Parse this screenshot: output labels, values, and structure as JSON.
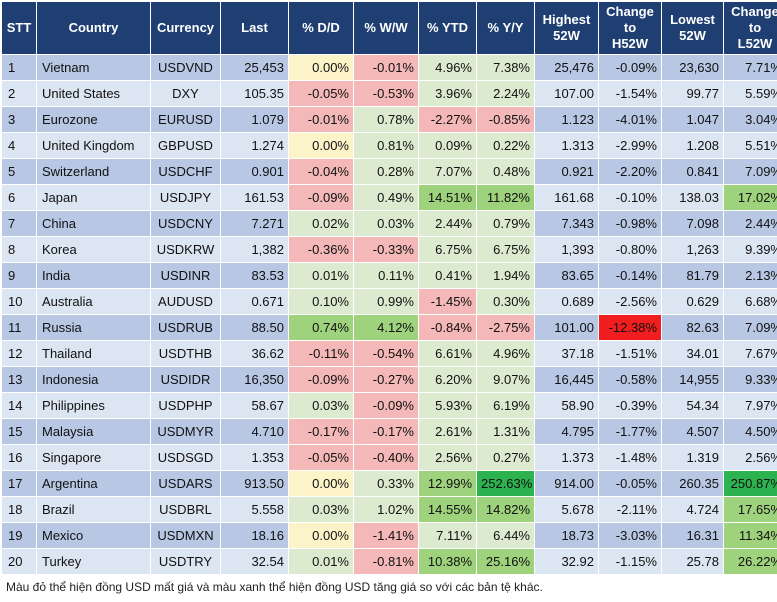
{
  "colors": {
    "header_bg": "#1f3f73",
    "row_odd": "#b8c7e3",
    "row_even": "#dce5f2",
    "neg_light": "#f4b8b8",
    "neg_strong": "#f01e1e",
    "pos_light": "#dcebd0",
    "pos_mid": "#9fd27c",
    "pos_strong": "#2cb34f",
    "neutral_yellow": "#fdf3c8"
  },
  "table": {
    "headers": [
      "STT",
      "Country",
      "Currency",
      "Last",
      "% D/D",
      "% W/W",
      "% YTD",
      "% Y/Y",
      "Highest\n52W",
      "Change\nto\nH52W",
      "Lowest\n52W",
      "Change\nto\nL52W"
    ],
    "rows": [
      {
        "stt": "1",
        "country": "Vietnam",
        "currency": "USDVND",
        "last": "25,453",
        "dd": "0.00%",
        "ww": "-0.01%",
        "ytd": "4.96%",
        "yy": "7.38%",
        "high": "25,476",
        "ch": "-0.09%",
        "low": "23,630",
        "cl": "7.71%"
      },
      {
        "stt": "2",
        "country": "United States",
        "currency": "DXY",
        "last": "105.35",
        "dd": "-0.05%",
        "ww": "-0.53%",
        "ytd": "3.96%",
        "yy": "2.24%",
        "high": "107.00",
        "ch": "-1.54%",
        "low": "99.77",
        "cl": "5.59%"
      },
      {
        "stt": "3",
        "country": "Eurozone",
        "currency": "EURUSD",
        "last": "1.079",
        "dd": "-0.01%",
        "ww": "0.78%",
        "ytd": "-2.27%",
        "yy": "-0.85%",
        "high": "1.123",
        "ch": "-4.01%",
        "low": "1.047",
        "cl": "3.04%"
      },
      {
        "stt": "4",
        "country": "United Kingdom",
        "currency": "GBPUSD",
        "last": "1.274",
        "dd": "0.00%",
        "ww": "0.81%",
        "ytd": "0.09%",
        "yy": "0.22%",
        "high": "1.313",
        "ch": "-2.99%",
        "low": "1.208",
        "cl": "5.51%"
      },
      {
        "stt": "5",
        "country": "Switzerland",
        "currency": "USDCHF",
        "last": "0.901",
        "dd": "-0.04%",
        "ww": "0.28%",
        "ytd": "7.07%",
        "yy": "0.48%",
        "high": "0.921",
        "ch": "-2.20%",
        "low": "0.841",
        "cl": "7.09%"
      },
      {
        "stt": "6",
        "country": "Japan",
        "currency": "USDJPY",
        "last": "161.53",
        "dd": "-0.09%",
        "ww": "0.49%",
        "ytd": "14.51%",
        "yy": "11.82%",
        "high": "161.68",
        "ch": "-0.10%",
        "low": "138.03",
        "cl": "17.02%"
      },
      {
        "stt": "7",
        "country": "China",
        "currency": "USDCNY",
        "last": "7.271",
        "dd": "0.02%",
        "ww": "0.03%",
        "ytd": "2.44%",
        "yy": "0.79%",
        "high": "7.343",
        "ch": "-0.98%",
        "low": "7.098",
        "cl": "2.44%"
      },
      {
        "stt": "8",
        "country": "Korea",
        "currency": "USDKRW",
        "last": "1,382",
        "dd": "-0.36%",
        "ww": "-0.33%",
        "ytd": "6.75%",
        "yy": "6.75%",
        "high": "1,393",
        "ch": "-0.80%",
        "low": "1,263",
        "cl": "9.39%"
      },
      {
        "stt": "9",
        "country": "India",
        "currency": "USDINR",
        "last": "83.53",
        "dd": "0.01%",
        "ww": "0.11%",
        "ytd": "0.41%",
        "yy": "1.94%",
        "high": "83.65",
        "ch": "-0.14%",
        "low": "81.79",
        "cl": "2.13%"
      },
      {
        "stt": "10",
        "country": "Australia",
        "currency": "AUDUSD",
        "last": "0.671",
        "dd": "0.10%",
        "ww": "0.99%",
        "ytd": "-1.45%",
        "yy": "0.30%",
        "high": "0.689",
        "ch": "-2.56%",
        "low": "0.629",
        "cl": "6.68%"
      },
      {
        "stt": "11",
        "country": "Russia",
        "currency": "USDRUB",
        "last": "88.50",
        "dd": "0.74%",
        "ww": "4.12%",
        "ytd": "-0.84%",
        "yy": "-2.75%",
        "high": "101.00",
        "ch": "-12.38%",
        "low": "82.63",
        "cl": "7.09%"
      },
      {
        "stt": "12",
        "country": "Thailand",
        "currency": "USDTHB",
        "last": "36.62",
        "dd": "-0.11%",
        "ww": "-0.54%",
        "ytd": "6.61%",
        "yy": "4.96%",
        "high": "37.18",
        "ch": "-1.51%",
        "low": "34.01",
        "cl": "7.67%"
      },
      {
        "stt": "13",
        "country": "Indonesia",
        "currency": "USDIDR",
        "last": "16,350",
        "dd": "-0.09%",
        "ww": "-0.27%",
        "ytd": "6.20%",
        "yy": "9.07%",
        "high": "16,445",
        "ch": "-0.58%",
        "low": "14,955",
        "cl": "9.33%"
      },
      {
        "stt": "14",
        "country": "Philippines",
        "currency": "USDPHP",
        "last": "58.67",
        "dd": "0.03%",
        "ww": "-0.09%",
        "ytd": "5.93%",
        "yy": "6.19%",
        "high": "58.90",
        "ch": "-0.39%",
        "low": "54.34",
        "cl": "7.97%"
      },
      {
        "stt": "15",
        "country": "Malaysia",
        "currency": "USDMYR",
        "last": "4.710",
        "dd": "-0.17%",
        "ww": "-0.17%",
        "ytd": "2.61%",
        "yy": "1.31%",
        "high": "4.795",
        "ch": "-1.77%",
        "low": "4.507",
        "cl": "4.50%"
      },
      {
        "stt": "16",
        "country": "Singapore",
        "currency": "USDSGD",
        "last": "1.353",
        "dd": "-0.05%",
        "ww": "-0.40%",
        "ytd": "2.56%",
        "yy": "0.27%",
        "high": "1.373",
        "ch": "-1.48%",
        "low": "1.319",
        "cl": "2.56%"
      },
      {
        "stt": "17",
        "country": "Argentina",
        "currency": "USDARS",
        "last": "913.50",
        "dd": "0.00%",
        "ww": "0.33%",
        "ytd": "12.99%",
        "yy": "252.63%",
        "high": "914.00",
        "ch": "-0.05%",
        "low": "260.35",
        "cl": "250.87%"
      },
      {
        "stt": "18",
        "country": "Brazil",
        "currency": "USDBRL",
        "last": "5.558",
        "dd": "0.03%",
        "ww": "1.02%",
        "ytd": "14.55%",
        "yy": "14.82%",
        "high": "5.678",
        "ch": "-2.11%",
        "low": "4.724",
        "cl": "17.65%"
      },
      {
        "stt": "19",
        "country": "Mexico",
        "currency": "USDMXN",
        "last": "18.16",
        "dd": "0.00%",
        "ww": "-1.41%",
        "ytd": "7.11%",
        "yy": "6.44%",
        "high": "18.73",
        "ch": "-3.03%",
        "low": "16.31",
        "cl": "11.34%"
      },
      {
        "stt": "20",
        "country": "Turkey",
        "currency": "USDTRY",
        "last": "32.54",
        "dd": "0.01%",
        "ww": "-0.81%",
        "ytd": "10.38%",
        "yy": "25.16%",
        "high": "32.92",
        "ch": "-1.15%",
        "low": "25.78",
        "cl": "26.22%"
      }
    ]
  },
  "footnote": "Màu đỏ thể hiện đồng USD mất giá và màu xanh thể hiện đồng USD tăng giá so với các bản tệ khác."
}
